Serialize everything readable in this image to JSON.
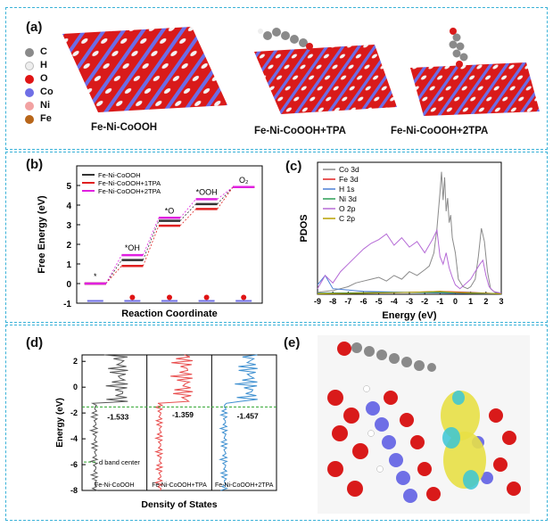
{
  "panel_a": {
    "label": "(a)",
    "legend": [
      {
        "symbol": "C",
        "color": "#8a8a8a"
      },
      {
        "symbol": "H",
        "color": "#eeeeee"
      },
      {
        "symbol": "O",
        "color": "#e01414"
      },
      {
        "symbol": "Co",
        "color": "#6f6fe6"
      },
      {
        "symbol": "Ni",
        "color": "#f2a2a2"
      },
      {
        "symbol": "Fe",
        "color": "#b8661a"
      }
    ],
    "captions": [
      "Fe-Ni-CoOOH",
      "Fe-Ni-CoOOH+TPA",
      "Fe-Ni-CoOOH+2TPA"
    ]
  },
  "panel_b": {
    "label": "(b)"
  },
  "panel_c": {
    "label": "(c)"
  },
  "panel_d": {
    "label": "(d)"
  },
  "panel_e": {
    "label": "(e)"
  },
  "chart_data": [
    {
      "panel": "(b)",
      "type": "line",
      "xlabel": "Reaction Coordinate",
      "ylabel": "Free Energy (eV)",
      "ylim": [
        -1,
        6
      ],
      "yticks": [
        -1,
        0,
        1,
        2,
        3,
        4,
        5
      ],
      "step_labels": [
        "*",
        "*OH",
        "*O",
        "*OOH",
        "O₂"
      ],
      "legend_position": "top-left",
      "series": [
        {
          "name": "Fe-Ni-CoOOH",
          "color": "#333333",
          "values": [
            0,
            1.2,
            3.2,
            4.05,
            4.92
          ]
        },
        {
          "name": "Fe-Ni-CoOOH+1TPA",
          "color": "#e02020",
          "values": [
            0,
            0.9,
            2.95,
            3.8,
            4.92
          ]
        },
        {
          "name": "Fe-Ni-CoOOH+2TPA",
          "color": "#e020e0",
          "values": [
            0,
            1.45,
            3.35,
            4.3,
            4.92
          ]
        }
      ]
    },
    {
      "panel": "(c)",
      "type": "line",
      "xlabel": "Energy (eV)",
      "ylabel": "PDOS",
      "xlim": [
        -9,
        3
      ],
      "xticks": [
        -9,
        -8,
        -7,
        -6,
        -5,
        -4,
        -3,
        -2,
        -1,
        0,
        1,
        2,
        3
      ],
      "legend_position": "top-left",
      "series": [
        {
          "name": "Co 3d",
          "color": "#8a8a8a",
          "x": [
            -9,
            -8,
            -7.5,
            -7,
            -6.5,
            -6,
            -5.5,
            -5,
            -4.5,
            -4,
            -3.5,
            -3,
            -2.5,
            -2,
            -1.7,
            -1.4,
            -1.2,
            -1,
            -0.9,
            -0.8,
            -0.7,
            -0.6,
            -0.5,
            -0.4,
            -0.3,
            -0.2,
            0,
            0.2,
            0.5,
            0.8,
            1,
            1.3,
            1.5,
            1.7,
            1.9,
            2.1,
            2.3,
            2.6,
            3
          ],
          "y": [
            0.1,
            0.2,
            0.3,
            0.4,
            0.6,
            0.7,
            0.8,
            0.9,
            0.7,
            1.0,
            0.8,
            1.2,
            1.0,
            1.3,
            1.5,
            2.2,
            3.5,
            5.4,
            6.5,
            5.0,
            6.2,
            4.4,
            5.1,
            3.8,
            4.2,
            3.0,
            2.2,
            0.8,
            0.4,
            0.3,
            0.4,
            0.8,
            2.0,
            3.5,
            2.8,
            1.2,
            0.3,
            0.1,
            0.05
          ]
        },
        {
          "name": "Fe 3d",
          "color": "#e02020",
          "x": [
            -9,
            -6,
            -3,
            -1,
            1,
            2,
            3
          ],
          "y": [
            0.05,
            0.08,
            0.1,
            0.15,
            0.1,
            0.06,
            0.03
          ]
        },
        {
          "name": "H 1s",
          "color": "#4a7fd6",
          "x": [
            -9,
            -8.5,
            -8,
            -6,
            -3,
            0,
            3
          ],
          "y": [
            0.5,
            1.0,
            0.3,
            0.15,
            0.1,
            0.05,
            0.02
          ]
        },
        {
          "name": "Ni 3d",
          "color": "#2b9d54",
          "x": [
            -9,
            -6,
            -3,
            -1,
            1,
            3
          ],
          "y": [
            0.05,
            0.08,
            0.1,
            0.1,
            0.08,
            0.03
          ]
        },
        {
          "name": "O 2p",
          "color": "#b56ad6",
          "x": [
            -9,
            -8.5,
            -8,
            -7.5,
            -7,
            -6.5,
            -6,
            -5.5,
            -5,
            -4.5,
            -4,
            -3.5,
            -3,
            -2.5,
            -2,
            -1.5,
            -1.2,
            -1,
            -0.8,
            -0.6,
            -0.4,
            -0.2,
            0,
            0.3,
            0.6,
            1,
            1.3,
            1.6,
            1.8,
            2,
            2.2,
            2.5,
            3
          ],
          "y": [
            0.3,
            1.0,
            0.6,
            1.2,
            1.6,
            2.0,
            2.4,
            2.7,
            2.9,
            3.2,
            2.6,
            3.0,
            2.5,
            2.8,
            2.2,
            2.9,
            3.4,
            2.0,
            1.6,
            2.2,
            1.4,
            0.9,
            0.5,
            0.3,
            0.5,
            0.8,
            1.2,
            1.6,
            1.8,
            1.0,
            0.4,
            0.15,
            0.05
          ]
        },
        {
          "name": "C 2p",
          "color": "#b8a000",
          "x": [
            -9,
            -6,
            -3,
            -1,
            0,
            1,
            2,
            3
          ],
          "y": [
            0.02,
            0.05,
            0.1,
            0.15,
            0.1,
            0.05,
            0.05,
            0.02
          ]
        }
      ]
    },
    {
      "panel": "(d)",
      "type": "line",
      "xlabel": "Density of States",
      "ylabel": "Energy (eV)",
      "ylim": [
        -8,
        2.5
      ],
      "yticks": [
        2,
        0,
        -2,
        -4,
        -6,
        -8
      ],
      "annotation": "d band center",
      "series": [
        {
          "name": "Fe-Ni-CoOOH",
          "color": "#555555",
          "d_band_center": -1.533,
          "label": "-1.533"
        },
        {
          "name": "Fe-Ni-CoOOH+TPA",
          "color": "#e84c4c",
          "d_band_center": -1.359,
          "label": "-1.359"
        },
        {
          "name": "Fe-Ni-CoOOH+2TPA",
          "color": "#3d8fd0",
          "d_band_center": -1.457,
          "label": "-1.457"
        }
      ]
    }
  ]
}
